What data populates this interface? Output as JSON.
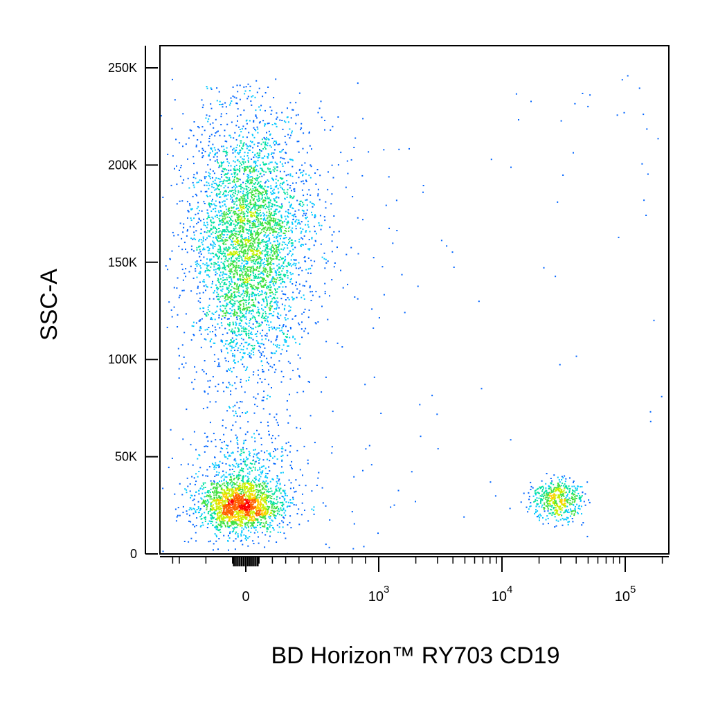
{
  "chart_data": {
    "type": "scatter",
    "subtype": "flow-cytometry pseudocolor density plot",
    "xlabel": "BD Horizon™ RY703 CD19",
    "ylabel": "SSC-A",
    "x_scale": "biexponential",
    "y_scale": "linear",
    "ylim": [
      -3000,
      262144
    ],
    "y_ticks": [
      {
        "value": 0,
        "label": "0"
      },
      {
        "value": 50000,
        "label": "50K"
      },
      {
        "value": 100000,
        "label": "100K"
      },
      {
        "value": 150000,
        "label": "150K"
      },
      {
        "value": 200000,
        "label": "200K"
      },
      {
        "value": 250000,
        "label": "250K"
      }
    ],
    "x_ticks": [
      {
        "value": 0,
        "base": "0",
        "exp": ""
      },
      {
        "value": 1000,
        "base": "10",
        "exp": "3"
      },
      {
        "value": 10000,
        "base": "10",
        "exp": "4"
      },
      {
        "value": 100000,
        "base": "10",
        "exp": "5"
      }
    ],
    "colormap": [
      "#0000b4",
      "#0064ff",
      "#00c8ff",
      "#00e0a0",
      "#40e040",
      "#c8f000",
      "#ffd000",
      "#ff6000",
      "#ff0000"
    ],
    "populations": [
      {
        "id": "cd19-negative-lymphocytes",
        "x_center": 0,
        "ssc_center": 25000,
        "events": 1600
      },
      {
        "id": "cd19-negative-granulocytes",
        "x_center": 0,
        "ssc_center": 160000,
        "events": 3200
      },
      {
        "id": "cd19-positive-b-cells",
        "x_center": 28000,
        "ssc_center": 28000,
        "events": 500
      }
    ],
    "grid": false,
    "legend": "none"
  }
}
